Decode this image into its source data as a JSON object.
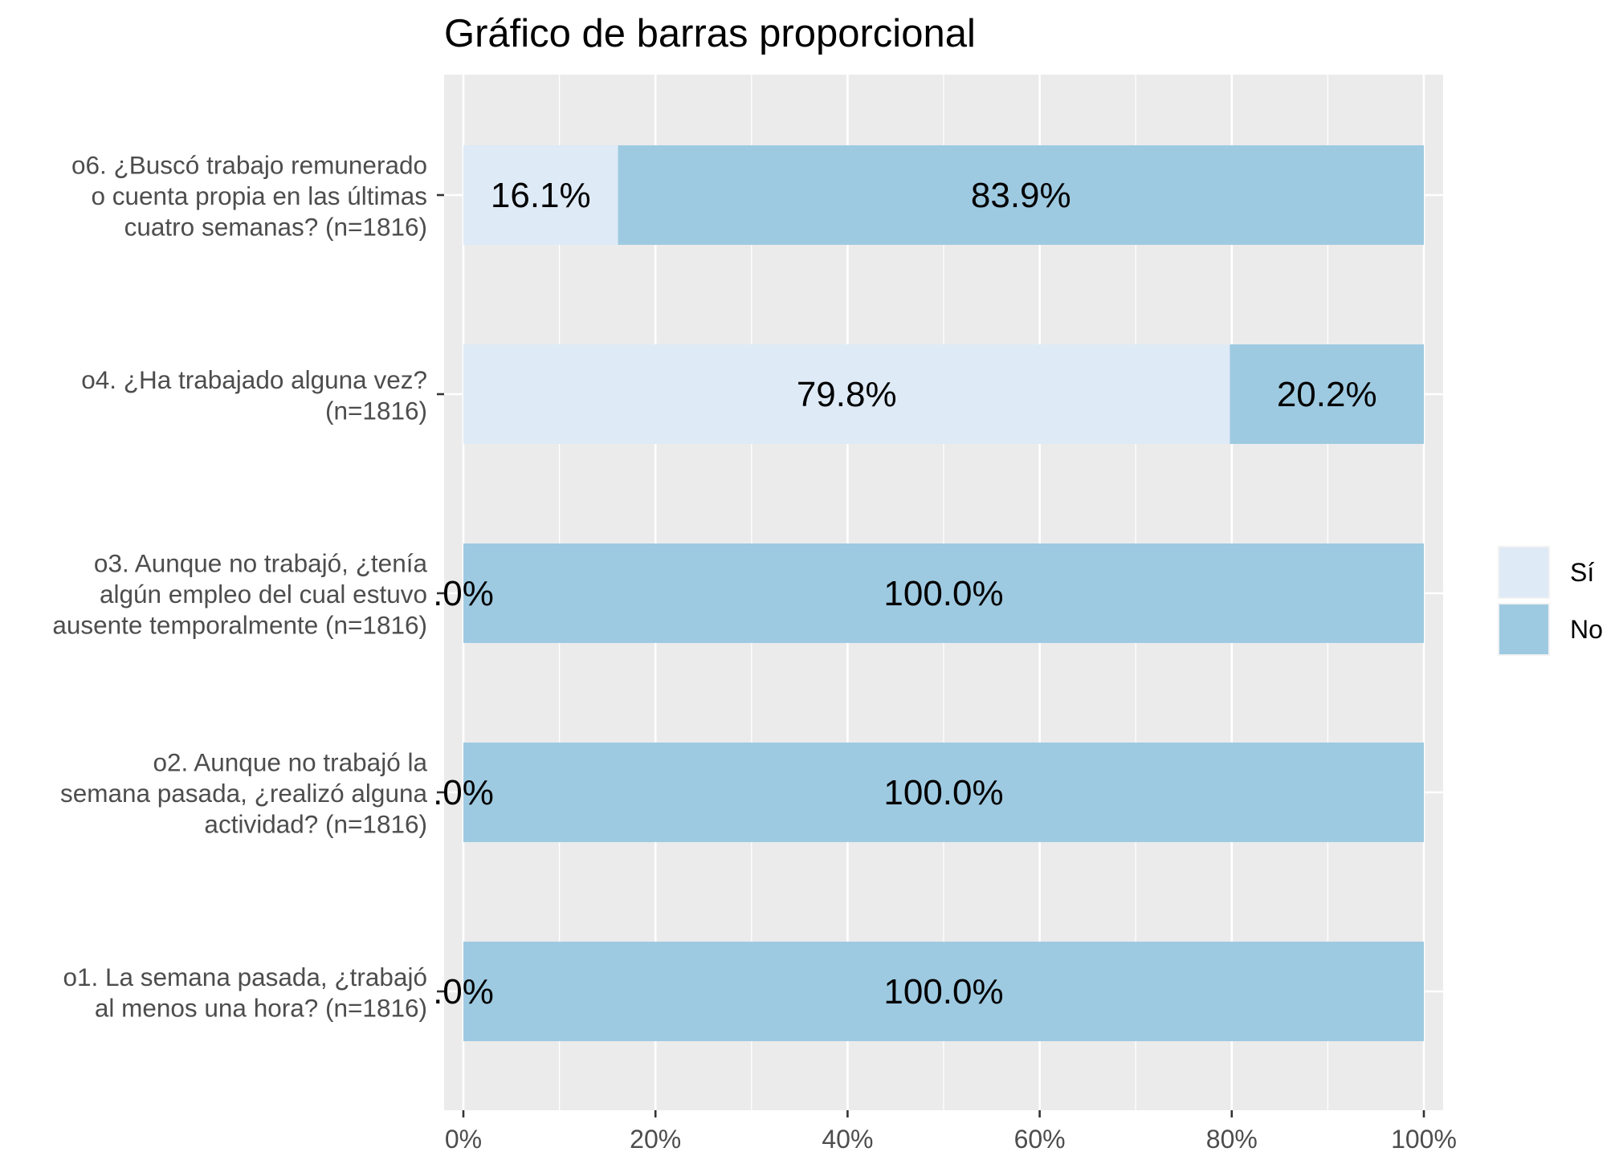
{
  "chart_data": {
    "type": "bar",
    "orientation": "horizontal",
    "stacked": true,
    "title": "Gráfico de barras proporcional",
    "xlabel": "",
    "ylabel": "",
    "xlim": [
      0,
      100
    ],
    "x_ticks": [
      "0%",
      "20%",
      "40%",
      "60%",
      "80%",
      "100%"
    ],
    "grid": true,
    "legend_position": "right",
    "categories": [
      [
        "o6. ¿Buscó trabajo remunerado",
        "o cuenta propia en las últimas",
        "cuatro semanas? (n=1816)"
      ],
      [
        "o4. ¿Ha trabajado alguna vez?",
        "(n=1816)"
      ],
      [
        "o3. Aunque no trabajó, ¿tenía",
        "algún empleo del cual estuvo",
        "ausente temporalmente (n=1816)"
      ],
      [
        "o2. Aunque no trabajó la",
        "semana pasada, ¿realizó alguna",
        "actividad? (n=1816)"
      ],
      [
        "o1. La semana pasada, ¿trabajó",
        "al menos una hora? (n=1816)"
      ]
    ],
    "series": [
      {
        "name": "Sí",
        "color": "#deeaf6",
        "values": [
          16.1,
          79.8,
          0.0,
          0.0,
          0.0
        ],
        "labels": [
          "16.1%",
          "79.8%",
          ".0%",
          ".0%",
          ".0%"
        ]
      },
      {
        "name": "No",
        "color": "#9ecae1",
        "values": [
          83.9,
          20.2,
          100.0,
          100.0,
          100.0
        ],
        "labels": [
          "83.9%",
          "20.2%",
          "100.0%",
          "100.0%",
          "100.0%"
        ]
      }
    ],
    "colors": {
      "panel": "#ebebeb",
      "grid": "#ffffff",
      "text": "#000000",
      "axis_text": "#4d4d4d"
    }
  }
}
